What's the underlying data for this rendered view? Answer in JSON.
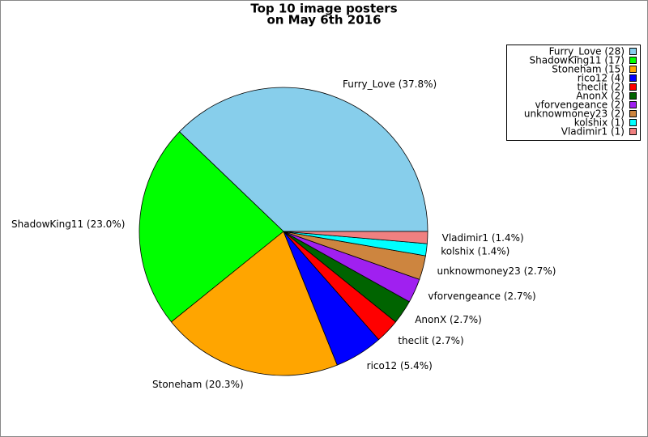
{
  "chart_data": {
    "type": "pie",
    "title": "Top 10 image posters",
    "subtitle": "on May 6th 2016",
    "values": [
      28,
      17,
      15,
      4,
      2,
      2,
      2,
      2,
      1,
      1
    ],
    "legend_labels": [
      "Furry_Love (28)",
      "ShadowKing11 (17)",
      "Stoneham (15)",
      "rico12 (4)",
      "theclit (2)",
      "AnonX (2)",
      "vforvengeance (2)",
      "unknowmoney23 (2)",
      "kolshix (1)",
      "Vladimir1 (1)"
    ],
    "slice_labels": [
      "Furry_Love (37.8%)",
      "ShadowKing11 (23.0%)",
      "Stoneham (20.3%)",
      "rico12 (5.4%)",
      "theclit (2.7%)",
      "AnonX (2.7%)",
      "vforvengeance (2.7%)",
      "unknowmoney23 (2.7%)",
      "kolshix (1.4%)",
      "Vladimir1 (1.4%)"
    ],
    "colors": [
      "#87ceeb",
      "#00ff00",
      "#ffa500",
      "#0000ff",
      "#ff0000",
      "#006400",
      "#a020f0",
      "#cd853f",
      "#00ffff",
      "#f08080"
    ],
    "legend": "top-right"
  }
}
